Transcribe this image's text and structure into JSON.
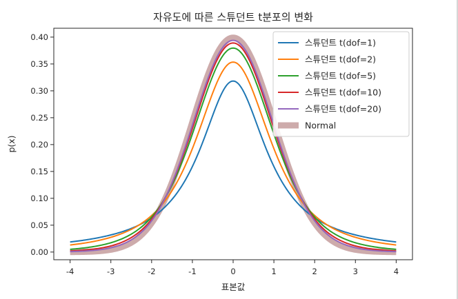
{
  "chart_data": {
    "type": "line",
    "title": "자유도에 따른 스튜던트 t분포의 변화",
    "xlabel": "표본값",
    "ylabel": "p(x)",
    "xlim": [
      -4.4,
      4.4
    ],
    "ylim": [
      -0.0143,
      0.4165
    ],
    "x_ticks": [
      "-4",
      "-3",
      "-2",
      "-1",
      "0",
      "1",
      "2",
      "3",
      "4"
    ],
    "y_ticks": [
      "0.00",
      "0.05",
      "0.10",
      "0.15",
      "0.20",
      "0.25",
      "0.30",
      "0.35",
      "0.40"
    ],
    "x_tick_values": [
      -4,
      -3,
      -2,
      -1,
      0,
      1,
      2,
      3,
      4
    ],
    "y_tick_values": [
      0,
      0.05,
      0.1,
      0.15,
      0.2,
      0.25,
      0.3,
      0.35,
      0.4
    ],
    "x": [
      -4,
      -3.5,
      -3,
      -2.5,
      -2,
      -1.5,
      -1,
      -0.5,
      0,
      0.5,
      1,
      1.5,
      2,
      2.5,
      3,
      3.5,
      4
    ],
    "grid": false,
    "legend_position": "top-right",
    "series": [
      {
        "name": "스튜던트 t(dof=1)",
        "color": "#1f77b4",
        "style": "normal",
        "values": [
          0.0187,
          0.024,
          0.0318,
          0.0439,
          0.0637,
          0.0979,
          0.1592,
          0.2546,
          0.3183,
          0.2546,
          0.1592,
          0.0979,
          0.0637,
          0.0439,
          0.0318,
          0.024,
          0.0187
        ]
      },
      {
        "name": "스튜던트 t(dof=2)",
        "color": "#ff7f0e",
        "style": "normal",
        "values": [
          0.0131,
          0.019,
          0.0286,
          0.045,
          0.068,
          0.1126,
          0.1925,
          0.2962,
          0.3536,
          0.2962,
          0.1925,
          0.1126,
          0.068,
          0.045,
          0.0286,
          0.019,
          0.0131
        ]
      },
      {
        "name": "스튜던트 t(dof=5)",
        "color": "#2ca02c",
        "style": "normal",
        "values": [
          0.0051,
          0.0099,
          0.0173,
          0.0333,
          0.0651,
          0.1245,
          0.2197,
          0.3279,
          0.3796,
          0.3279,
          0.2197,
          0.1245,
          0.0651,
          0.0333,
          0.0173,
          0.0099,
          0.0051
        ]
      },
      {
        "name": "스튜던트 t(dof=10)",
        "color": "#d62728",
        "style": "normal",
        "values": [
          0.002,
          0.0047,
          0.0114,
          0.0269,
          0.0611,
          0.1274,
          0.2304,
          0.3397,
          0.3891,
          0.3397,
          0.2304,
          0.1274,
          0.0611,
          0.0269,
          0.0114,
          0.0047,
          0.002
        ]
      },
      {
        "name": "스튜던트 t(dof=20)",
        "color": "#9467bd",
        "style": "normal",
        "values": [
          0.0007,
          0.0024,
          0.0082,
          0.0227,
          0.0581,
          0.1283,
          0.236,
          0.3458,
          0.394,
          0.3458,
          0.236,
          0.1283,
          0.0581,
          0.0227,
          0.0082,
          0.0024,
          0.0007
        ]
      },
      {
        "name": "Normal",
        "color": "#bc8f8f",
        "style": "thick",
        "values": [
          0.0001,
          0.0009,
          0.0044,
          0.0175,
          0.054,
          0.1295,
          0.242,
          0.3521,
          0.3989,
          0.3521,
          0.242,
          0.1295,
          0.054,
          0.0175,
          0.0044,
          0.0009,
          0.0001
        ]
      }
    ]
  }
}
